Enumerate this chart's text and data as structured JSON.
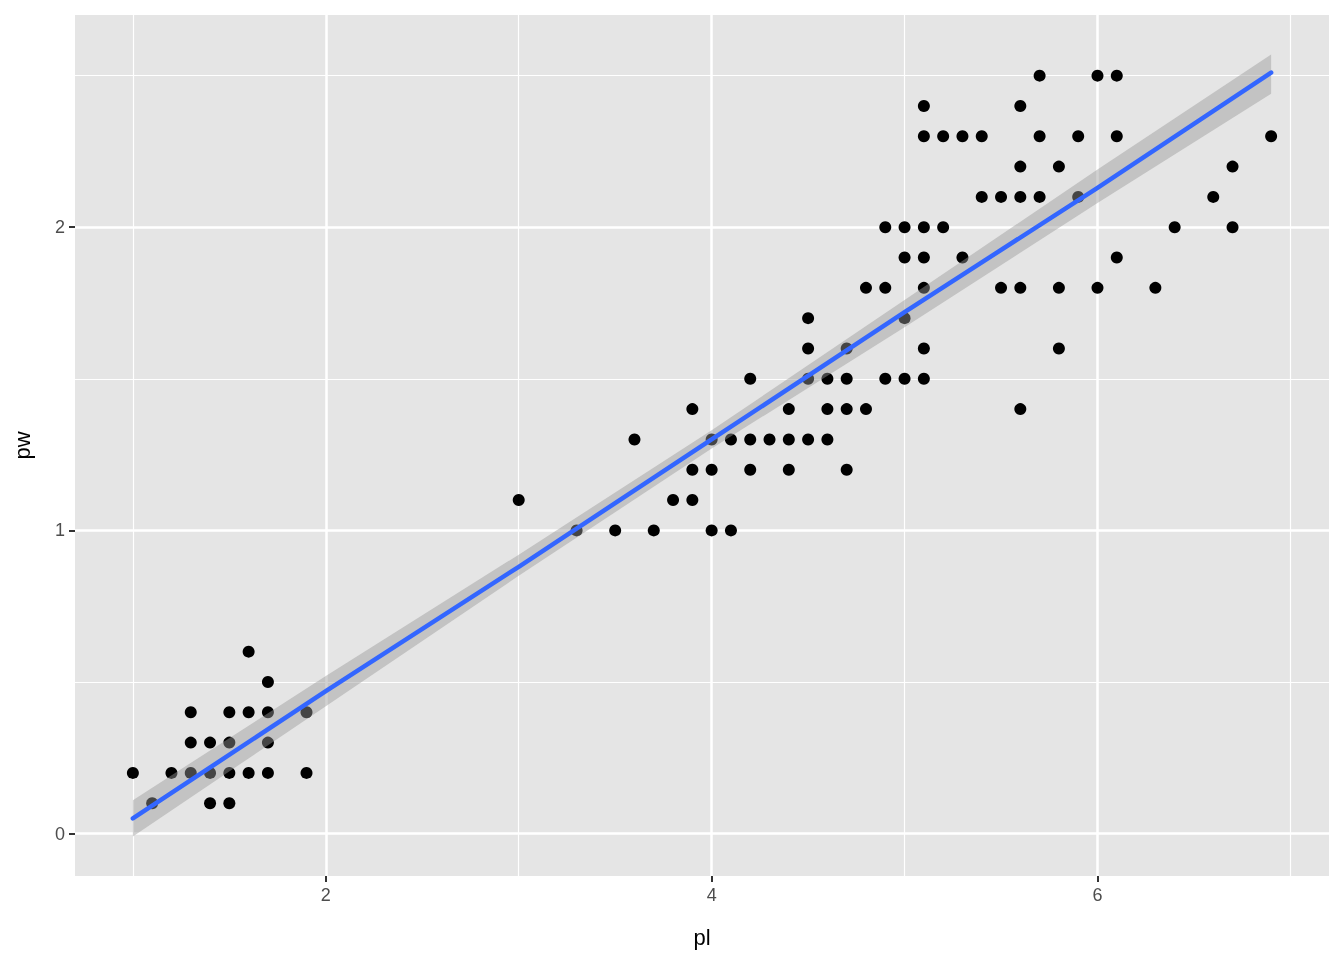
{
  "chart_data": {
    "type": "scatter",
    "xlabel": "pl",
    "ylabel": "pw",
    "xlim": [
      0.7,
      7.2
    ],
    "ylim": [
      -0.14,
      2.7
    ],
    "xticks": [
      2,
      4,
      6
    ],
    "yticks": [
      0,
      1,
      2
    ],
    "grid": true,
    "series": [
      {
        "color": "#000000",
        "marker": "circle",
        "x": [
          1,
          1.1,
          1.2,
          1.3,
          1.3,
          1.3,
          1.4,
          1.4,
          1.4,
          1.5,
          1.5,
          1.5,
          1.5,
          1.6,
          1.6,
          1.6,
          1.7,
          1.7,
          1.7,
          1.7,
          1.9,
          1.9,
          3,
          3.3,
          3.5,
          3.6,
          3.7,
          3.8,
          3.9,
          3.9,
          3.9,
          4,
          4,
          4,
          4.1,
          4.1,
          4.2,
          4.2,
          4.2,
          4.3,
          4.4,
          4.4,
          4.4,
          4.5,
          4.5,
          4.5,
          4.5,
          4.6,
          4.6,
          4.6,
          4.7,
          4.7,
          4.7,
          4.7,
          4.8,
          4.8,
          4.9,
          4.9,
          4.9,
          5,
          5,
          5,
          5,
          5.1,
          5.1,
          5.1,
          5.1,
          5.1,
          5.1,
          5.1,
          5.2,
          5.2,
          5.3,
          5.3,
          5.4,
          5.4,
          5.5,
          5.5,
          5.6,
          5.6,
          5.6,
          5.6,
          5.6,
          5.7,
          5.7,
          5.7,
          5.8,
          5.8,
          5.8,
          5.9,
          5.9,
          6,
          6,
          6.1,
          6.1,
          6.1,
          6.3,
          6.4,
          6.6,
          6.7,
          6.7,
          6.9
        ],
        "values": [
          0.2,
          0.1,
          0.2,
          0.2,
          0.3,
          0.4,
          0.1,
          0.2,
          0.3,
          0.1,
          0.2,
          0.3,
          0.4,
          0.2,
          0.4,
          0.6,
          0.2,
          0.3,
          0.4,
          0.5,
          0.2,
          0.4,
          1.1,
          1,
          1,
          1.3,
          1,
          1.1,
          1.1,
          1.2,
          1.4,
          1,
          1.2,
          1.3,
          1,
          1.3,
          1.2,
          1.3,
          1.5,
          1.3,
          1.2,
          1.3,
          1.4,
          1.3,
          1.5,
          1.6,
          1.7,
          1.3,
          1.4,
          1.5,
          1.2,
          1.4,
          1.5,
          1.6,
          1.4,
          1.8,
          1.5,
          1.8,
          2,
          1.5,
          1.7,
          1.9,
          2,
          1.5,
          1.6,
          1.8,
          1.9,
          2,
          2.3,
          2.4,
          2,
          2.3,
          1.9,
          2.3,
          2.1,
          2.3,
          1.8,
          2.1,
          1.4,
          1.8,
          2.1,
          2.2,
          2.4,
          2.1,
          2.3,
          2.5,
          1.6,
          1.8,
          2.2,
          2.1,
          2.3,
          1.8,
          2.5,
          1.9,
          2.3,
          2.5,
          1.8,
          2,
          2.1,
          2,
          2.2,
          2.3
        ]
      },
      {
        "type": "line",
        "color": "#3366ff",
        "marker": "none",
        "x": [
          1,
          2,
          3,
          4,
          5,
          6,
          6.9
        ],
        "values": [
          0.05,
          0.47,
          0.88,
          1.3,
          1.72,
          2.13,
          2.51
        ],
        "lower": [
          -0.01,
          0.42,
          0.85,
          1.27,
          1.67,
          2.08,
          2.44
        ],
        "upper": [
          0.11,
          0.52,
          0.92,
          1.33,
          1.76,
          2.19,
          2.57
        ]
      }
    ]
  }
}
